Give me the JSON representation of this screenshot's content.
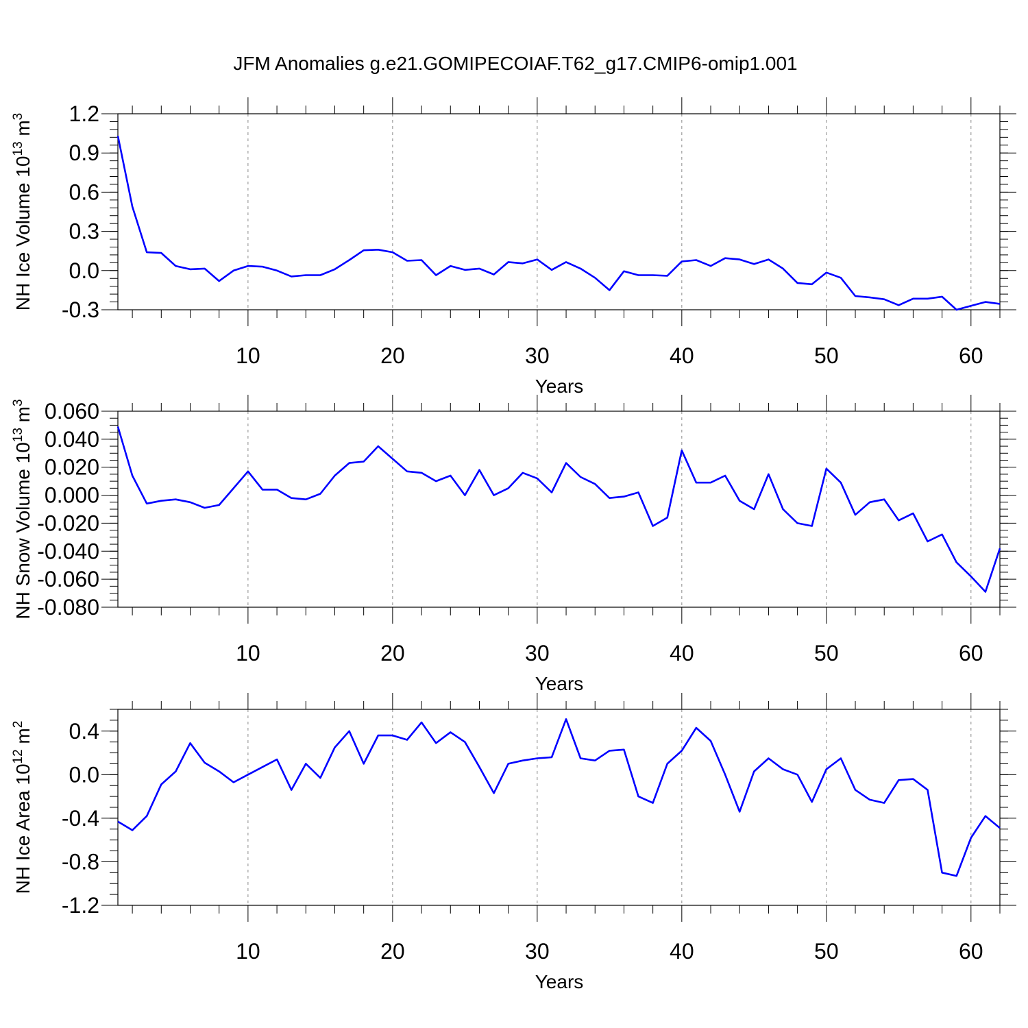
{
  "title": "JFM Anomalies g.e21.GOMIPECOIAF.T62_g17.CMIP6-omip1.001",
  "colors": {
    "series": "#0000ff",
    "axis": "#000000",
    "grid": "#888888",
    "background": "#ffffff"
  },
  "chart_data": [
    {
      "type": "line",
      "title": "JFM Anomalies g.e21.GOMIPECOIAF.T62_g17.CMIP6-omip1.001",
      "xlabel": "Years",
      "ylabel": "NH Ice Volume 10",
      "ylabel_sup": "13",
      "ylabel_unit": " m",
      "ylabel_unit_sup": "3",
      "xlim": [
        1,
        62
      ],
      "ylim": [
        -0.3,
        1.2
      ],
      "yticks": [
        -0.3,
        0.0,
        0.3,
        0.6,
        0.9,
        1.2
      ],
      "ytick_labels": [
        "-0.3",
        "0.0",
        "0.3",
        "0.6",
        "0.9",
        "1.2"
      ],
      "yminor_step": 0.06,
      "xticks": [
        10,
        20,
        30,
        40,
        50,
        60
      ],
      "xtick_labels": [
        "10",
        "20",
        "30",
        "40",
        "50",
        "60"
      ],
      "grid": "vertical-dashed",
      "x": [
        1,
        2,
        3,
        4,
        5,
        6,
        7,
        8,
        9,
        10,
        11,
        12,
        13,
        14,
        15,
        16,
        17,
        18,
        19,
        20,
        21,
        22,
        23,
        24,
        25,
        26,
        27,
        28,
        29,
        30,
        31,
        32,
        33,
        34,
        35,
        36,
        37,
        38,
        39,
        40,
        41,
        42,
        43,
        44,
        45,
        46,
        47,
        48,
        49,
        50,
        51,
        52,
        53,
        54,
        55,
        56,
        57,
        58,
        59,
        60,
        61,
        62
      ],
      "values": [
        1.03,
        0.49,
        0.14,
        0.135,
        0.035,
        0.01,
        0.015,
        -0.08,
        0.0,
        0.035,
        0.03,
        0.0,
        -0.045,
        -0.035,
        -0.035,
        0.01,
        0.08,
        0.155,
        0.16,
        0.14,
        0.075,
        0.08,
        -0.035,
        0.035,
        0.005,
        0.015,
        -0.03,
        0.065,
        0.055,
        0.085,
        0.005,
        0.065,
        0.015,
        -0.055,
        -0.15,
        -0.005,
        -0.035,
        -0.035,
        -0.04,
        0.07,
        0.08,
        0.035,
        0.095,
        0.085,
        0.05,
        0.085,
        0.015,
        -0.095,
        -0.105,
        -0.015,
        -0.055,
        -0.195,
        -0.205,
        -0.22,
        -0.265,
        -0.215,
        -0.215,
        -0.2,
        -0.3,
        -0.27,
        -0.24,
        -0.255
      ]
    },
    {
      "type": "line",
      "xlabel": "Years",
      "ylabel": "NH Snow Volume 10",
      "ylabel_sup": "13",
      "ylabel_unit": " m",
      "ylabel_unit_sup": "3",
      "xlim": [
        1,
        62
      ],
      "ylim": [
        -0.08,
        0.06
      ],
      "yticks": [
        -0.08,
        -0.06,
        -0.04,
        -0.02,
        0.0,
        0.02,
        0.04,
        0.06
      ],
      "ytick_labels": [
        "-0.080",
        "-0.060",
        "-0.040",
        "-0.020",
        "0.000",
        "0.020",
        "0.040",
        "0.060"
      ],
      "yminor_step": 0.005,
      "xticks": [
        10,
        20,
        30,
        40,
        50,
        60
      ],
      "xtick_labels": [
        "10",
        "20",
        "30",
        "40",
        "50",
        "60"
      ],
      "grid": "vertical-dashed",
      "x": [
        1,
        2,
        3,
        4,
        5,
        6,
        7,
        8,
        9,
        10,
        11,
        12,
        13,
        14,
        15,
        16,
        17,
        18,
        19,
        20,
        21,
        22,
        23,
        24,
        25,
        26,
        27,
        28,
        29,
        30,
        31,
        32,
        33,
        34,
        35,
        36,
        37,
        38,
        39,
        40,
        41,
        42,
        43,
        44,
        45,
        46,
        47,
        48,
        49,
        50,
        51,
        52,
        53,
        54,
        55,
        56,
        57,
        58,
        59,
        60,
        61,
        62
      ],
      "values": [
        0.049,
        0.014,
        -0.006,
        -0.004,
        -0.003,
        -0.005,
        -0.009,
        -0.007,
        0.005,
        0.017,
        0.004,
        0.004,
        -0.002,
        -0.003,
        0.001,
        0.014,
        0.023,
        0.024,
        0.035,
        0.026,
        0.017,
        0.016,
        0.01,
        0.014,
        0.0,
        0.018,
        0.0,
        0.005,
        0.016,
        0.012,
        0.002,
        0.023,
        0.013,
        0.008,
        -0.002,
        -0.001,
        0.002,
        -0.022,
        -0.016,
        0.032,
        0.009,
        0.009,
        0.014,
        -0.004,
        -0.01,
        0.015,
        -0.01,
        -0.02,
        -0.022,
        0.019,
        0.009,
        -0.014,
        -0.005,
        -0.003,
        -0.018,
        -0.013,
        -0.033,
        -0.028,
        -0.048,
        -0.058,
        -0.069,
        -0.038
      ]
    },
    {
      "type": "line",
      "xlabel": "Years",
      "ylabel": "NH Ice Area 10",
      "ylabel_sup": "12",
      "ylabel_unit": " m",
      "ylabel_unit_sup": "2",
      "xlim": [
        1,
        62
      ],
      "ylim": [
        -1.2,
        0.6
      ],
      "yticks": [
        -1.2,
        -0.8,
        -0.4,
        0.0,
        0.4
      ],
      "ytick_labels": [
        "-1.2",
        "-0.8",
        "-0.4",
        "0.0",
        "0.4"
      ],
      "yminor_step": 0.1,
      "xticks": [
        10,
        20,
        30,
        40,
        50,
        60
      ],
      "xtick_labels": [
        "10",
        "20",
        "30",
        "40",
        "50",
        "60"
      ],
      "grid": "vertical-dashed",
      "x": [
        1,
        2,
        3,
        4,
        5,
        6,
        7,
        8,
        9,
        10,
        11,
        12,
        13,
        14,
        15,
        16,
        17,
        18,
        19,
        20,
        21,
        22,
        23,
        24,
        25,
        26,
        27,
        28,
        29,
        30,
        31,
        32,
        33,
        34,
        35,
        36,
        37,
        38,
        39,
        40,
        41,
        42,
        43,
        44,
        45,
        46,
        47,
        48,
        49,
        50,
        51,
        52,
        53,
        54,
        55,
        56,
        57,
        58,
        59,
        60,
        61,
        62
      ],
      "values": [
        -0.43,
        -0.51,
        -0.38,
        -0.09,
        0.03,
        0.29,
        0.11,
        0.03,
        -0.07,
        0.0,
        0.07,
        0.14,
        -0.14,
        0.1,
        -0.03,
        0.25,
        0.4,
        0.1,
        0.36,
        0.36,
        0.32,
        0.48,
        0.29,
        0.39,
        0.3,
        0.07,
        -0.17,
        0.1,
        0.13,
        0.15,
        0.16,
        0.51,
        0.15,
        0.13,
        0.22,
        0.23,
        -0.2,
        -0.26,
        0.1,
        0.22,
        0.43,
        0.31,
        0.0,
        -0.34,
        0.03,
        0.15,
        0.05,
        0.0,
        -0.25,
        0.05,
        0.15,
        -0.14,
        -0.23,
        -0.26,
        -0.05,
        -0.04,
        -0.14,
        -0.9,
        -0.93,
        -0.58,
        -0.38,
        -0.49
      ]
    }
  ]
}
